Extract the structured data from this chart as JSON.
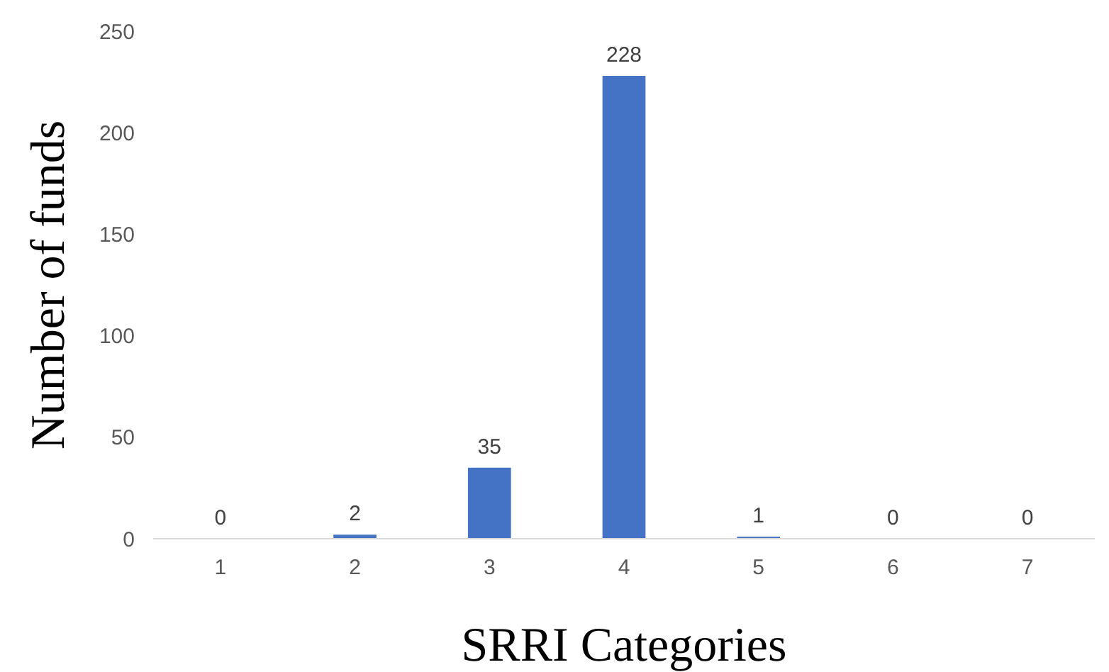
{
  "chart_data": {
    "type": "bar",
    "xlabel": "SRRI Categories",
    "ylabel": "Number of funds",
    "categories": [
      "1",
      "2",
      "3",
      "4",
      "5",
      "6",
      "7"
    ],
    "values": [
      0,
      2,
      35,
      228,
      1,
      0,
      0
    ],
    "color": "#4472c4",
    "ylim": [
      0,
      250
    ],
    "yticks": [
      0,
      50,
      100,
      150,
      200,
      250
    ],
    "data_labels": true,
    "grid": false
  }
}
